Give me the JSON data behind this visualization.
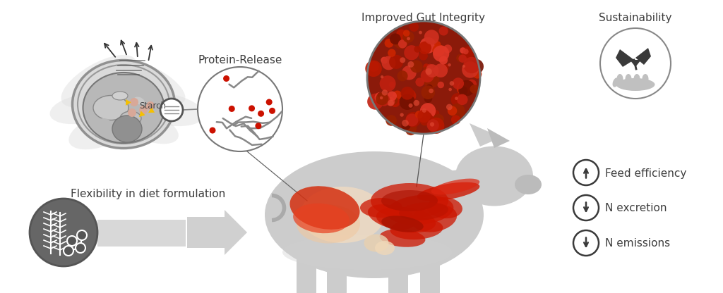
{
  "bg_color": "#ffffff",
  "labels": {
    "protein_release": "Protein-Release",
    "gut_integrity": "Improved Gut Integrity",
    "sustainability": "Sustainability",
    "flexibility": "Flexibility in diet formulation",
    "feed_efficiency": "Feed efficiency",
    "n_excretion": "N excretion",
    "n_emissions": "N emissions",
    "starch": "Starch"
  },
  "text_color": "#3d3d3d",
  "yellow_accent": "#f5c000",
  "red_dot": "#cc1100",
  "pig_color": "#c8c8c8",
  "gut_red": "#cc1100",
  "gut_cream": "#f0d0a0"
}
